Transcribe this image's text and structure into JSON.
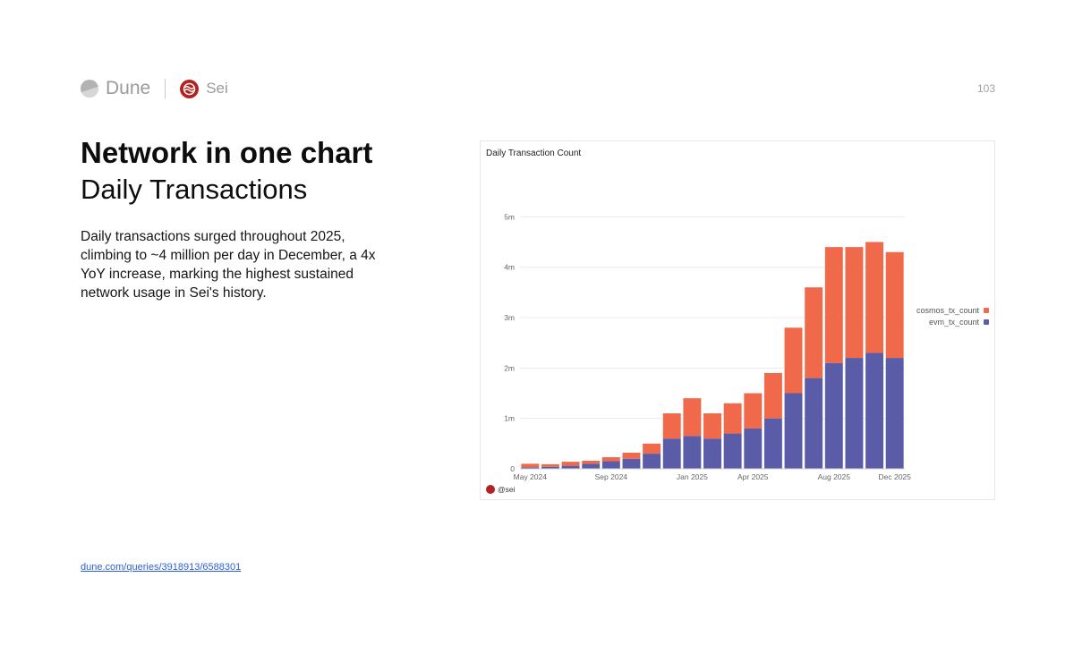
{
  "header": {
    "brand_dune": "Dune",
    "brand_sei": "Sei",
    "page_number": "103"
  },
  "headline": "Network in one chart",
  "subheadline": "Daily Transactions",
  "body": "Daily transactions surged throughout 2025, climbing to ~4 million per day in December, a 4x YoY increase, marking the highest sustained network usage in Sei's history.",
  "source_link": "dune.com/queries/3918913/6588301",
  "colors": {
    "cosmos": "#f0694a",
    "evm": "#5a5ca8",
    "sei_red": "#b3221f"
  },
  "icons": {
    "dune": "dune-logo-icon",
    "sei": "sei-logo-icon"
  },
  "chart_data": {
    "type": "bar",
    "stacked": true,
    "title": "Daily Transaction Count",
    "xlabel": "",
    "ylabel": "",
    "x_ticks": [
      "May 2024",
      "Sep 2024",
      "Jan 2025",
      "Apr 2025",
      "Aug 2025",
      "Dec 2025"
    ],
    "y_ticks": [
      "0",
      "1m",
      "2m",
      "3m",
      "4m",
      "5m"
    ],
    "ylim": [
      0,
      6000000
    ],
    "grid": true,
    "legend_position": "right",
    "watermark": "@sei",
    "series": [
      {
        "name": "evm_tx_count",
        "color": "#5a5ca8",
        "x": [
          "2024-05",
          "2024-06",
          "2024-07",
          "2024-08",
          "2024-09",
          "2024-10",
          "2024-11",
          "2024-12",
          "2025-01",
          "2025-02",
          "2025-03",
          "2025-04",
          "2025-05",
          "2025-06",
          "2025-07",
          "2025-08",
          "2025-09",
          "2025-10",
          "2025-11"
        ],
        "values": [
          30000,
          40000,
          60000,
          100000,
          150000,
          200000,
          300000,
          600000,
          650000,
          600000,
          700000,
          800000,
          1000000,
          1500000,
          1800000,
          2100000,
          2200000,
          2300000,
          2200000
        ]
      },
      {
        "name": "cosmos_tx_count",
        "color": "#f0694a",
        "x": [
          "2024-05",
          "2024-06",
          "2024-07",
          "2024-08",
          "2024-09",
          "2024-10",
          "2024-11",
          "2024-12",
          "2025-01",
          "2025-02",
          "2025-03",
          "2025-04",
          "2025-05",
          "2025-06",
          "2025-07",
          "2025-08",
          "2025-09",
          "2025-10",
          "2025-11"
        ],
        "values": [
          70000,
          50000,
          80000,
          60000,
          80000,
          120000,
          200000,
          500000,
          750000,
          500000,
          600000,
          700000,
          900000,
          1300000,
          1800000,
          2300000,
          2200000,
          2200000,
          2100000
        ]
      }
    ]
  }
}
